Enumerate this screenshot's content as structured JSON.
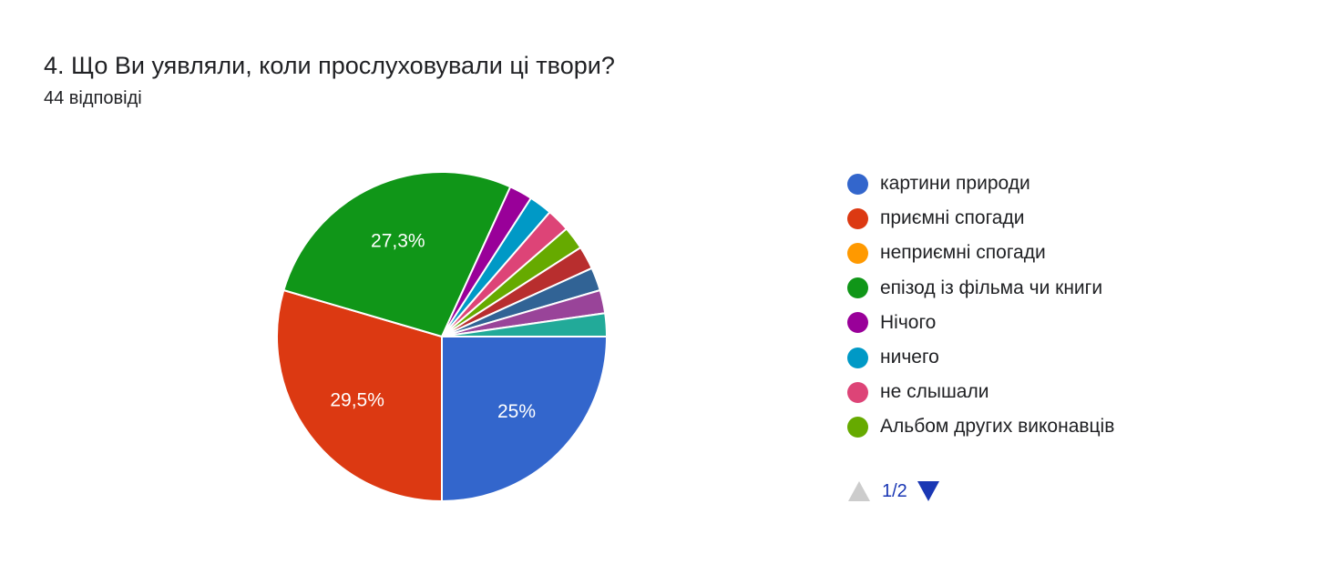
{
  "question": {
    "title": "4. Що Ви уявляли, коли прослуховували ці твори?",
    "responses": "44 відповіді"
  },
  "chart_data": {
    "type": "pie",
    "start_angle_deg": 90,
    "direction": "clockwise",
    "total": 44,
    "slices": [
      {
        "label": "картини природи",
        "value": 11,
        "percent_label": "25%",
        "color": "#3366cc"
      },
      {
        "label": "приємні спогади",
        "value": 13,
        "percent_label": "29,5%",
        "color": "#dc3912"
      },
      {
        "label": "неприємні спогади",
        "value": 0,
        "percent_label": "",
        "color": "#ff9900"
      },
      {
        "label": "епізод із фільма чи книги",
        "value": 12,
        "percent_label": "27,3%",
        "color": "#109618"
      },
      {
        "label": "Нічого",
        "value": 1,
        "percent_label": "",
        "color": "#990099"
      },
      {
        "label": "ничего",
        "value": 1,
        "percent_label": "",
        "color": "#0099c6"
      },
      {
        "label": "не слышали",
        "value": 1,
        "percent_label": "",
        "color": "#dd4477"
      },
      {
        "label": "Альбом других виконавців",
        "value": 1,
        "percent_label": "",
        "color": "#66aa00"
      },
      {
        "label": "",
        "value": 1,
        "percent_label": "",
        "color": "#b82e2e"
      },
      {
        "label": "",
        "value": 1,
        "percent_label": "",
        "color": "#316395"
      },
      {
        "label": "",
        "value": 1,
        "percent_label": "",
        "color": "#994499"
      },
      {
        "label": "",
        "value": 1,
        "percent_label": "",
        "color": "#22aa99"
      }
    ],
    "legend_visible_count": 8,
    "legend_placement": "right"
  },
  "pager": {
    "text": "1/2",
    "prev_icon": "triangle-up-icon",
    "next_icon": "triangle-down-icon",
    "active_color": "#1a37b4",
    "disabled_color": "#cccccc"
  }
}
